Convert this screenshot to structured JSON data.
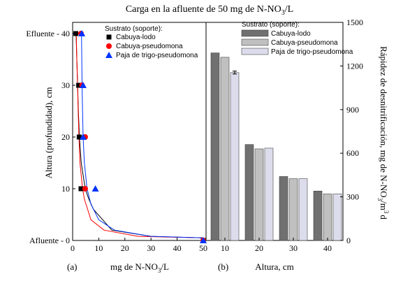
{
  "title_prefix": "Carga en la afluente de 50 mg de N-NO",
  "title_sub": "3",
  "title_suffix": "/L",
  "chart_data": [
    {
      "type": "scatter",
      "panel_label": "(a)",
      "xlabel_prefix": "mg de N-NO",
      "xlabel_sub": "3",
      "xlabel_suffix": "/L",
      "ylabel": "Altura (profundidad), cm",
      "xlim": [
        0,
        50
      ],
      "ylim": [
        0,
        40
      ],
      "x_ticks": [
        0,
        10,
        20,
        30,
        40,
        50
      ],
      "y_ticks": [
        0,
        10,
        20,
        30,
        40
      ],
      "y_tick_labels": {
        "0": "Afluente - 0",
        "10": "10",
        "20": "20",
        "30": "30",
        "40": "Efluente - 40"
      },
      "legend_title": "Sustrato (soporte):",
      "series": [
        {
          "name": "Cabuya-lodo",
          "marker": "square",
          "color": "#000000",
          "points": [
            [
              1.2,
              40
            ],
            [
              2.3,
              30
            ],
            [
              2.5,
              20
            ],
            [
              3.2,
              10
            ],
            [
              50,
              0
            ]
          ],
          "curve": [
            [
              50,
              0.5
            ],
            [
              30,
              0.8
            ],
            [
              15,
              2
            ],
            [
              8,
              6
            ],
            [
              6.2,
              8
            ],
            [
              4.8,
              10
            ],
            [
              3.3,
              15
            ],
            [
              2.6,
              20
            ],
            [
              2.2,
              25
            ],
            [
              1.9,
              30
            ],
            [
              1.6,
              35
            ],
            [
              1.3,
              40
            ]
          ]
        },
        {
          "name": "Cabuya-pseudomona",
          "marker": "circle",
          "color": "#ff0000",
          "points": [
            [
              3.2,
              40
            ],
            [
              3.6,
              30
            ],
            [
              4.8,
              20
            ],
            [
              4.8,
              10
            ],
            [
              50,
              0
            ]
          ],
          "curve": [
            [
              50,
              0.5
            ],
            [
              25,
              0.8
            ],
            [
              12,
              2
            ],
            [
              7,
              4
            ],
            [
              4.5,
              8
            ],
            [
              3.8,
              10
            ],
            [
              2.8,
              15
            ],
            [
              2.4,
              20
            ],
            [
              2.1,
              25
            ],
            [
              1.9,
              30
            ],
            [
              1.6,
              35
            ],
            [
              1.4,
              40
            ]
          ]
        },
        {
          "name": "Paja de trigo-pseudomona",
          "marker": "triangle",
          "color": "#0033ff",
          "points": [
            [
              3.5,
              40
            ],
            [
              4.0,
              30
            ],
            [
              4.0,
              20
            ],
            [
              8.7,
              10
            ],
            [
              50,
              0
            ]
          ],
          "curve": [
            [
              50,
              0.5
            ],
            [
              30,
              0.8
            ],
            [
              16,
              2
            ],
            [
              10,
              4
            ],
            [
              7,
              7
            ],
            [
              5.5,
              10
            ],
            [
              4.5,
              15
            ],
            [
              4.0,
              20
            ],
            [
              3.8,
              25
            ],
            [
              3.6,
              30
            ],
            [
              3.5,
              35
            ],
            [
              3.4,
              40
            ]
          ]
        }
      ]
    },
    {
      "type": "bar",
      "panel_label": "(b)",
      "xlabel": "Altura, cm",
      "ylabel_prefix": "Rápidez de desnitrificación, mg de N-NO",
      "ylabel_sub": "3",
      "ylabel_mid": "/m",
      "ylabel_sup": "3",
      "ylabel_suffix": "d",
      "ylim": [
        0,
        1500
      ],
      "y_ticks": [
        0,
        300,
        600,
        900,
        1200,
        1500
      ],
      "categories": [
        "10",
        "20",
        "30",
        "40"
      ],
      "legend_title": "Sustrato (soporte):",
      "series": [
        {
          "name": "Cabuya-lodo",
          "color": "#707070",
          "values": [
            1290,
            660,
            440,
            340
          ]
        },
        {
          "name": "Cabuya-pseudomona",
          "color": "#c0c0c0",
          "values": [
            1260,
            630,
            425,
            320
          ]
        },
        {
          "name": "Paja de trigo-pseudomona",
          "color": "#dcdcec",
          "values": [
            1155,
            635,
            425,
            320
          ],
          "errors": [
            10,
            0,
            0,
            0
          ]
        }
      ]
    }
  ]
}
